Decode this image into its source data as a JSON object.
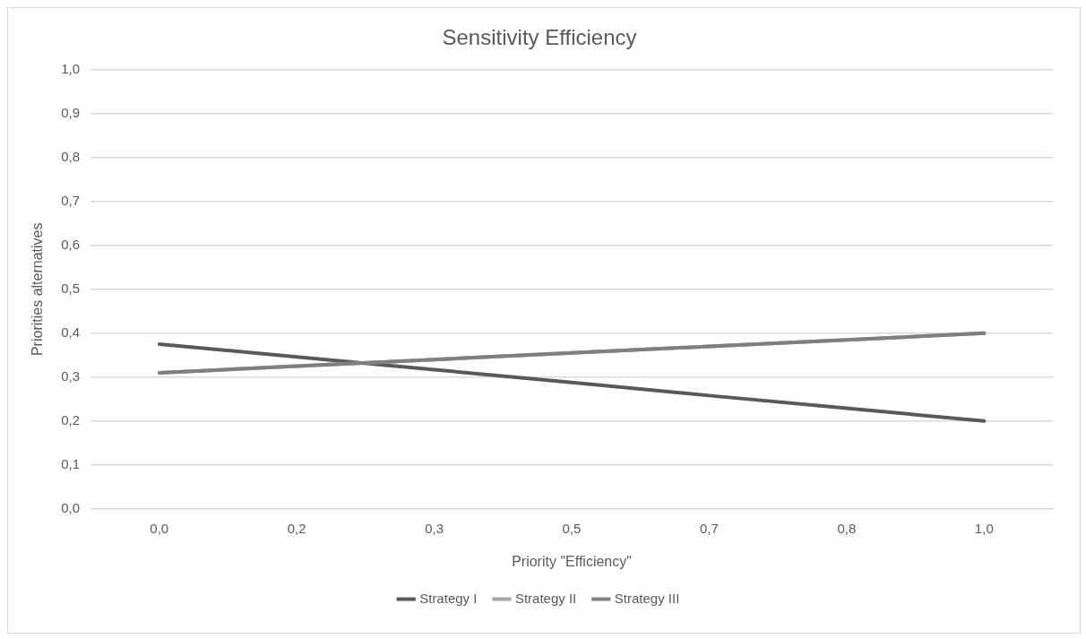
{
  "chart_data": {
    "type": "line",
    "title": "Sensitivity Efficiency",
    "xlabel": "Priority \"Efficiency\"",
    "ylabel": "Priorities alternatives",
    "categories": [
      "0,0",
      "0,2",
      "0,3",
      "0,5",
      "0,7",
      "0,8",
      "1,0"
    ],
    "series": [
      {
        "name": "Strategy I",
        "color": "#595959",
        "values": [
          0.375,
          0.346,
          0.317,
          0.288,
          0.258,
          0.229,
          0.2
        ]
      },
      {
        "name": "Strategy II",
        "color": "#a5a5a5",
        "values": [
          0.31,
          0.325,
          0.34,
          0.355,
          0.37,
          0.385,
          0.4
        ]
      },
      {
        "name": "Strategy III",
        "color": "#7f7f7f",
        "values": [
          0.31,
          0.325,
          0.34,
          0.355,
          0.37,
          0.385,
          0.4
        ]
      }
    ],
    "ylim": [
      0,
      1
    ],
    "yticks": [
      {
        "value": 0,
        "label": "0,0"
      },
      {
        "value": 0.1,
        "label": "0,1"
      },
      {
        "value": 0.2,
        "label": "0,2"
      },
      {
        "value": 0.3,
        "label": "0,3"
      },
      {
        "value": 0.4,
        "label": "0,4"
      },
      {
        "value": 0.5,
        "label": "0,5"
      },
      {
        "value": 0.6,
        "label": "0,6"
      },
      {
        "value": 0.7,
        "label": "0,7"
      },
      {
        "value": 0.8,
        "label": "0,8"
      },
      {
        "value": 0.9,
        "label": "0,9"
      },
      {
        "value": 1,
        "label": "1,0"
      }
    ],
    "grid": "y",
    "legend": "bottom",
    "marker": "none",
    "line_style": "solid"
  }
}
